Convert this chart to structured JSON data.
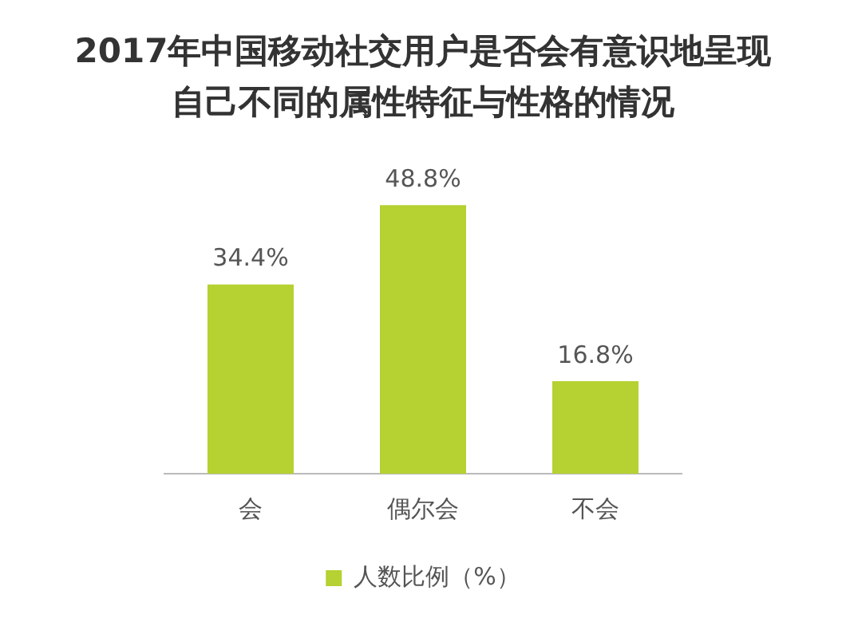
{
  "chart_data": {
    "type": "bar",
    "title": "2017年中国移动社交用户是否会有意识地呈现自己不同的属性特征与性格的情况",
    "categories": [
      "会",
      "偶尔会",
      "不会"
    ],
    "series": [
      {
        "name": "人数比例（%）",
        "color": "#b5d132",
        "values": [
          34.4,
          48.8,
          16.8
        ],
        "value_labels": [
          "34.4%",
          "48.8%",
          "16.8%"
        ]
      }
    ],
    "grid": false,
    "legend": "bottom"
  }
}
